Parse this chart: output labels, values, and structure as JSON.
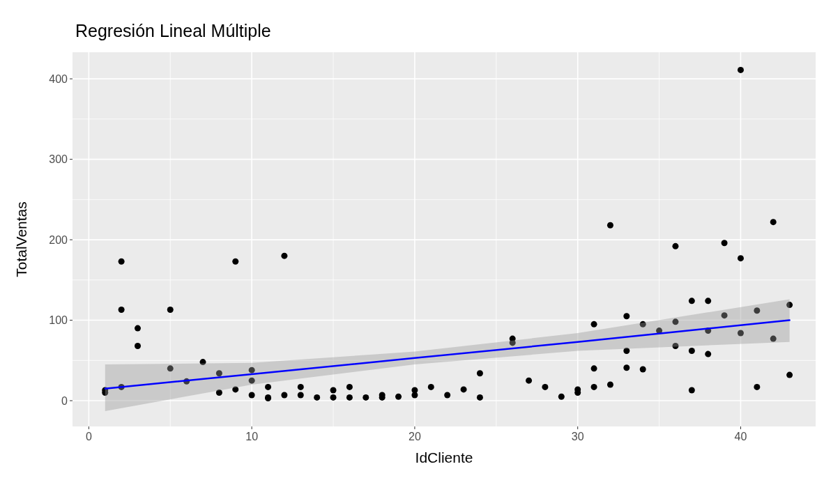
{
  "chart_data": {
    "type": "scatter",
    "title": "Regresión Lineal Múltiple",
    "xlabel": "IdCliente",
    "ylabel": "TotalVentas",
    "xlim": [
      -1,
      44.6
    ],
    "ylim": [
      -32,
      433
    ],
    "xticks": [
      0,
      10,
      20,
      30,
      40
    ],
    "yticks": [
      0,
      100,
      200,
      300,
      400
    ],
    "grid": true,
    "series": [
      {
        "marker": "circle",
        "color": "#000000",
        "x": [
          1,
          1,
          2,
          2,
          2,
          3,
          3,
          5,
          5,
          6,
          7,
          8,
          8,
          9,
          9,
          10,
          10,
          10,
          11,
          11,
          11,
          12,
          12,
          13,
          13,
          14,
          15,
          15,
          16,
          16,
          17,
          18,
          18,
          19,
          20,
          20,
          21,
          22,
          23,
          24,
          24,
          26,
          26,
          27,
          28,
          29,
          30,
          30,
          31,
          31,
          31,
          32,
          32,
          33,
          33,
          33,
          34,
          34,
          35,
          36,
          36,
          36,
          37,
          37,
          37,
          38,
          38,
          38,
          39,
          39,
          40,
          40,
          40,
          41,
          41,
          42,
          42,
          43,
          43
        ],
        "values": [
          13,
          10,
          173,
          113,
          17,
          90,
          68,
          113,
          40,
          24,
          48,
          34,
          10,
          173,
          14,
          38,
          25,
          7,
          17,
          4,
          3,
          180,
          7,
          17,
          7,
          4,
          13,
          4,
          17,
          4,
          4,
          7,
          4,
          5,
          13,
          7,
          17,
          7,
          14,
          34,
          4,
          77,
          72,
          25,
          17,
          5,
          14,
          10,
          95,
          40,
          17,
          218,
          20,
          105,
          62,
          41,
          95,
          39,
          87,
          192,
          98,
          68,
          124,
          62,
          13,
          124,
          87,
          58,
          196,
          106,
          411,
          177,
          84,
          112,
          17,
          222,
          77,
          119,
          32
        ]
      },
      {
        "type": "line",
        "color": "#0000ff",
        "x": [
          1,
          10,
          20,
          30,
          43
        ],
        "values": [
          15,
          33,
          53,
          73,
          100
        ],
        "lower": [
          -13,
          20,
          45,
          62,
          73
        ],
        "upper": [
          45,
          47,
          61,
          84,
          126
        ]
      }
    ]
  }
}
